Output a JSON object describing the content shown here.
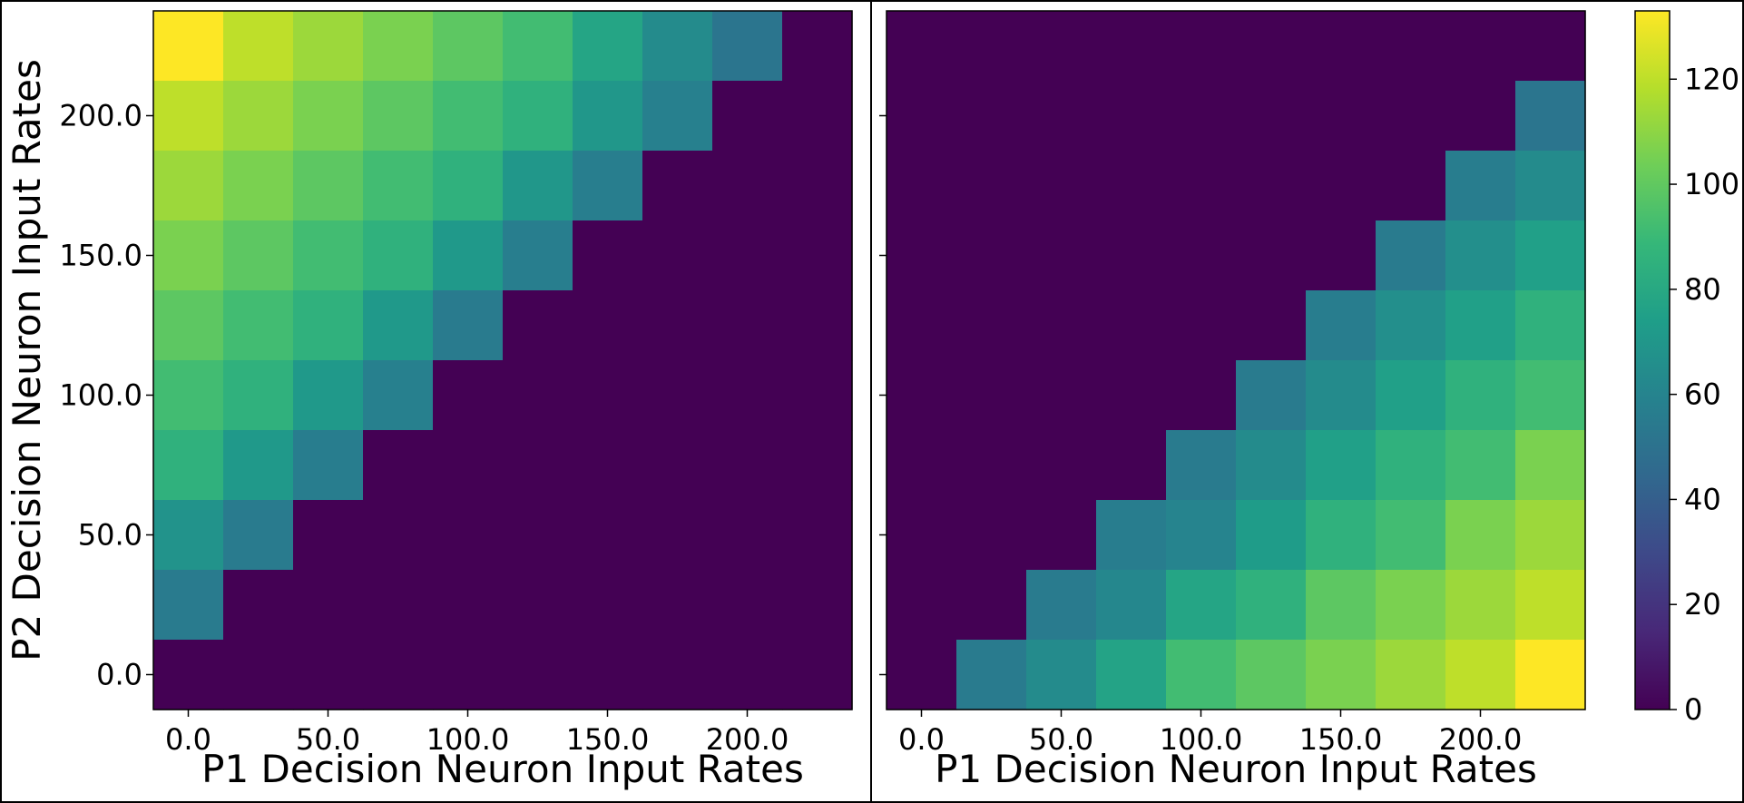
{
  "chart_data": [
    {
      "type": "heatmap",
      "panel": "left",
      "title": "",
      "xlabel": "P1 Decision Neuron Input Rates",
      "ylabel": "P2 Decision Neuron Input Rates",
      "x": [
        0,
        25,
        50,
        75,
        100,
        125,
        150,
        175,
        200,
        225
      ],
      "y": [
        0,
        25,
        50,
        75,
        100,
        125,
        150,
        175,
        200,
        225
      ],
      "xticks": [
        "0.0",
        "50.0",
        "100.0",
        "150.0",
        "200.0"
      ],
      "yticks": [
        "0.0",
        "50.0",
        "100.0",
        "150.0",
        "200.0"
      ],
      "xlim": [
        -12.5,
        237.5
      ],
      "ylim": [
        -12.5,
        237.5
      ],
      "z_rows_top_to_bottom": [
        [
          133,
          120,
          113,
          106,
          99,
          92,
          78,
          64,
          52,
          0
        ],
        [
          120,
          113,
          106,
          99,
          92,
          85,
          70,
          58,
          0,
          0
        ],
        [
          113,
          106,
          99,
          92,
          85,
          70,
          57,
          0,
          0,
          0
        ],
        [
          106,
          99,
          92,
          85,
          71,
          57,
          0,
          0,
          0,
          0
        ],
        [
          99,
          92,
          85,
          71,
          55,
          0,
          0,
          0,
          0,
          0
        ],
        [
          92,
          85,
          71,
          58,
          0,
          0,
          0,
          0,
          0,
          0
        ],
        [
          85,
          71,
          56,
          0,
          0,
          0,
          0,
          0,
          0,
          0
        ],
        [
          68,
          55,
          0,
          0,
          0,
          0,
          0,
          0,
          0,
          0
        ],
        [
          55,
          0,
          0,
          0,
          0,
          0,
          0,
          0,
          0,
          0
        ],
        [
          0,
          0,
          0,
          0,
          0,
          0,
          0,
          0,
          0,
          0
        ]
      ]
    },
    {
      "type": "heatmap",
      "panel": "right",
      "title": "",
      "xlabel": "P1 Decision Neuron Input Rates",
      "ylabel": "",
      "x": [
        0,
        25,
        50,
        75,
        100,
        125,
        150,
        175,
        200,
        225
      ],
      "y": [
        0,
        25,
        50,
        75,
        100,
        125,
        150,
        175,
        200,
        225
      ],
      "xticks": [
        "0.0",
        "50.0",
        "100.0",
        "150.0",
        "200.0"
      ],
      "yticks": [],
      "xlim": [
        -12.5,
        237.5
      ],
      "ylim": [
        -12.5,
        237.5
      ],
      "z_rows_top_to_bottom": [
        [
          0,
          0,
          0,
          0,
          0,
          0,
          0,
          0,
          0,
          0
        ],
        [
          0,
          0,
          0,
          0,
          0,
          0,
          0,
          0,
          0,
          52
        ],
        [
          0,
          0,
          0,
          0,
          0,
          0,
          0,
          0,
          56,
          64
        ],
        [
          0,
          0,
          0,
          0,
          0,
          0,
          0,
          55,
          66,
          75
        ],
        [
          0,
          0,
          0,
          0,
          0,
          0,
          56,
          66,
          75,
          85
        ],
        [
          0,
          0,
          0,
          0,
          0,
          55,
          64,
          75,
          85,
          92
        ],
        [
          0,
          0,
          0,
          0,
          55,
          64,
          75,
          85,
          92,
          106
        ],
        [
          0,
          0,
          0,
          56,
          60,
          73,
          85,
          92,
          106,
          113
        ],
        [
          0,
          0,
          55,
          62,
          78,
          85,
          99,
          106,
          113,
          120
        ],
        [
          0,
          55,
          64,
          77,
          92,
          99,
          106,
          113,
          120,
          133
        ]
      ]
    }
  ],
  "colorbar": {
    "colormap": "viridis",
    "vmin": 0,
    "vmax": 133,
    "ticks": [
      0,
      20,
      40,
      60,
      80,
      100,
      120
    ],
    "tick_labels": [
      "0",
      "20",
      "40",
      "60",
      "80",
      "100",
      "120"
    ]
  },
  "colors": {
    "viridis_stops": [
      "#440154",
      "#482878",
      "#3e4989",
      "#31688e",
      "#26828e",
      "#1f9e89",
      "#35b779",
      "#6ece58",
      "#b5de2b",
      "#fde725"
    ],
    "frame": "#000000"
  }
}
